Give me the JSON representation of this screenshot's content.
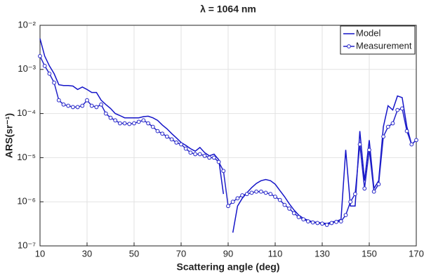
{
  "chart_data": {
    "type": "line",
    "title": "λ = 1064 nm",
    "x_label": "Scattering angle (deg)",
    "y_label": "ARS(sr⁻¹)",
    "log_y": true,
    "grid": true,
    "legend": "top-right",
    "xlim": [
      10,
      170
    ],
    "xticks": [
      10,
      30,
      50,
      70,
      90,
      110,
      130,
      150,
      170
    ],
    "ylim": [
      1e-07,
      0.01
    ],
    "yticks": [
      {
        "value": 1e-07,
        "label": "10⁻⁷"
      },
      {
        "value": 1e-06,
        "label": "10⁻⁶"
      },
      {
        "value": 1e-05,
        "label": "10⁻⁵"
      },
      {
        "value": 0.0001,
        "label": "10⁻⁴"
      },
      {
        "value": 0.001,
        "label": "10⁻³"
      },
      {
        "value": 0.01,
        "label": "10⁻²"
      }
    ],
    "x": [
      10,
      12,
      14,
      16,
      18,
      20,
      22,
      24,
      26,
      28,
      30,
      32,
      34,
      36,
      38,
      40,
      42,
      44,
      46,
      48,
      50,
      52,
      54,
      56,
      58,
      60,
      62,
      64,
      66,
      68,
      70,
      72,
      74,
      76,
      78,
      80,
      82,
      84,
      86,
      88,
      90,
      92,
      94,
      96,
      98,
      100,
      102,
      104,
      106,
      108,
      110,
      112,
      114,
      116,
      118,
      120,
      122,
      124,
      126,
      128,
      130,
      132,
      134,
      136,
      138,
      140,
      142,
      144,
      146,
      148,
      150,
      152,
      154,
      156,
      158,
      160,
      162,
      164,
      166,
      168,
      170
    ],
    "series": [
      {
        "name": "Model",
        "color": "#1414c8",
        "markers": false,
        "values": [
          0.005,
          0.002,
          0.0012,
          0.0008,
          0.00045,
          0.00043,
          0.00043,
          0.00042,
          0.00035,
          0.0004,
          0.00035,
          0.0003,
          0.0003,
          0.0002,
          0.00016,
          0.00013,
          0.0001,
          9e-05,
          8e-05,
          8e-05,
          8e-05,
          8e-05,
          8.5e-05,
          8.7e-05,
          8e-05,
          7e-05,
          5.5e-05,
          4.5e-05,
          3.5e-05,
          2.8e-05,
          2.2e-05,
          1.9e-05,
          1.6e-05,
          1.4e-05,
          1.7e-05,
          1.3e-05,
          1.1e-05,
          1.2e-05,
          9e-06,
          1.5e-06,
          null,
          2e-07,
          8e-07,
          1.2e-06,
          1.6e-06,
          2.1e-06,
          2.6e-06,
          3e-06,
          3.2e-06,
          3e-06,
          2.5e-06,
          1.8e-06,
          1.3e-06,
          9e-07,
          6.5e-07,
          5e-07,
          4.2e-07,
          3.8e-07,
          3.5e-07,
          3.4e-07,
          3.3e-07,
          3.2e-07,
          3.5e-07,
          3.6e-07,
          4e-07,
          1.5e-05,
          8e-07,
          8e-07,
          4e-05,
          3e-06,
          2.5e-05,
          2e-06,
          3e-06,
          5e-05,
          0.00015,
          0.00012,
          0.00025,
          0.00023,
          5e-05,
          2e-05,
          2.5e-05
        ]
      },
      {
        "name": "Measurement",
        "color": "#2323c8",
        "markers": true,
        "values": [
          0.002,
          0.0012,
          0.0008,
          0.0005,
          0.0002,
          0.00016,
          0.00015,
          0.00014,
          0.00014,
          0.00015,
          0.0002,
          0.00015,
          0.00014,
          0.00016,
          0.0001,
          8e-05,
          7e-05,
          6e-05,
          6e-05,
          5.8e-05,
          6e-05,
          6.5e-05,
          7e-05,
          6e-05,
          5e-05,
          4e-05,
          3.5e-05,
          3e-05,
          2.6e-05,
          2.2e-05,
          2e-05,
          1.6e-05,
          1.3e-05,
          1.2e-05,
          1.2e-05,
          1.1e-05,
          1e-05,
          1e-05,
          8e-06,
          5e-06,
          8e-07,
          1e-06,
          1.2e-06,
          1.4e-06,
          1.5e-06,
          1.6e-06,
          1.7e-06,
          1.7e-06,
          1.6e-06,
          1.5e-06,
          1.3e-06,
          1.1e-06,
          8.5e-07,
          7e-07,
          5.5e-07,
          4.5e-07,
          4e-07,
          3.6e-07,
          3.4e-07,
          3.3e-07,
          3.2e-07,
          3e-07,
          3.3e-07,
          3.5e-07,
          3.6e-07,
          5e-07,
          1e-06,
          1.5e-06,
          2e-05,
          2e-06,
          1.5e-05,
          1.7e-06,
          2.5e-06,
          3e-05,
          5e-05,
          6e-05,
          0.00012,
          0.00013,
          4e-05,
          2e-05,
          2.5e-05
        ]
      }
    ]
  }
}
